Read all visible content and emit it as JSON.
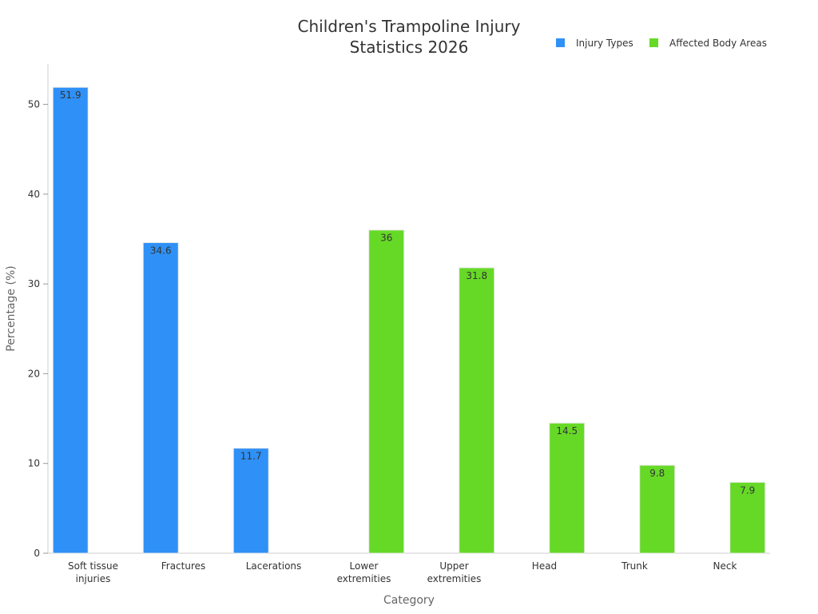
{
  "chart_data": {
    "type": "bar",
    "title_lines": [
      "Children's Trampoline Injury",
      "Statistics 2026"
    ],
    "xlabel": "Category",
    "ylabel": "Percentage (%)",
    "ylim": [
      0,
      54.5
    ],
    "yticks": [
      0,
      10,
      20,
      30,
      40,
      50
    ],
    "categories": [
      [
        "Soft tissue",
        "injuries"
      ],
      [
        "Fractures"
      ],
      [
        "Lacerations"
      ],
      [
        "Lower",
        "extremities"
      ],
      [
        "Upper",
        "extremities"
      ],
      [
        "Head"
      ],
      [
        "Trunk"
      ],
      [
        "Neck"
      ]
    ],
    "legend_position": "top-right",
    "grid": false,
    "series": [
      {
        "name": "Injury Types",
        "color": "#2f91f7",
        "values": [
          51.9,
          34.6,
          11.7,
          null,
          null,
          null,
          null,
          null
        ]
      },
      {
        "name": "Affected Body Areas",
        "color": "#66d927",
        "values": [
          null,
          null,
          null,
          36,
          31.8,
          14.5,
          9.8,
          7.9
        ]
      }
    ]
  }
}
